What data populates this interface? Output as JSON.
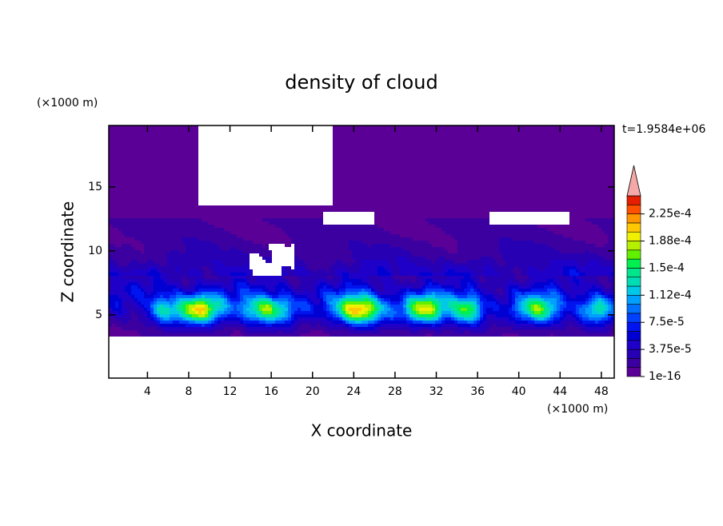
{
  "chart_data": {
    "type": "contour",
    "title": "density of cloud",
    "x_label": "X coordinate",
    "y_label": "Z coordinate",
    "x_unit": "(×1000 m)",
    "y_unit": "(×1000 m)",
    "time_label": "t=1.9584e+06",
    "xlim": [
      0.25,
      49.25
    ],
    "xticks": [
      4,
      8,
      12,
      16,
      20,
      24,
      28,
      32,
      36,
      40,
      44,
      48
    ],
    "ylim": [
      0.05,
      19.8
    ],
    "yticks": [
      5,
      10,
      15
    ],
    "colorbar": {
      "levels": [
        1e-16,
        1.25e-05,
        2.5e-05,
        3.75e-05,
        5e-05,
        6.25e-05,
        7.5e-05,
        8.75e-05,
        0.0001,
        0.0001125,
        0.000125,
        0.0001375,
        0.00015,
        0.0001625,
        0.000175,
        0.0001875,
        0.0002,
        0.0002125,
        0.000225,
        0.0002375,
        0.00025
      ],
      "colors": [
        "#5a0096",
        "#3c00a0",
        "#2800b4",
        "#1e00c8",
        "#0000d2",
        "#0014f0",
        "#0040ff",
        "#0070ff",
        "#00a0ff",
        "#00c8e6",
        "#00dcb4",
        "#00e68c",
        "#00f050",
        "#60f000",
        "#b4f000",
        "#f0f000",
        "#ffc800",
        "#ff9600",
        "#ff5000",
        "#e61e00"
      ],
      "over_color": "#f4a8a8",
      "ticks": [
        {
          "value": 1e-16,
          "label": "1e-16"
        },
        {
          "value": 3.75e-05,
          "label": "3.75e-5"
        },
        {
          "value": 7.5e-05,
          "label": "7.5e-5"
        },
        {
          "value": 0.0001125,
          "label": "1.12e-4"
        },
        {
          "value": 0.00015,
          "label": "1.5e-4"
        },
        {
          "value": 0.0001875,
          "label": "1.88e-4"
        },
        {
          "value": 0.000225,
          "label": "2.25e-4"
        }
      ]
    }
  }
}
